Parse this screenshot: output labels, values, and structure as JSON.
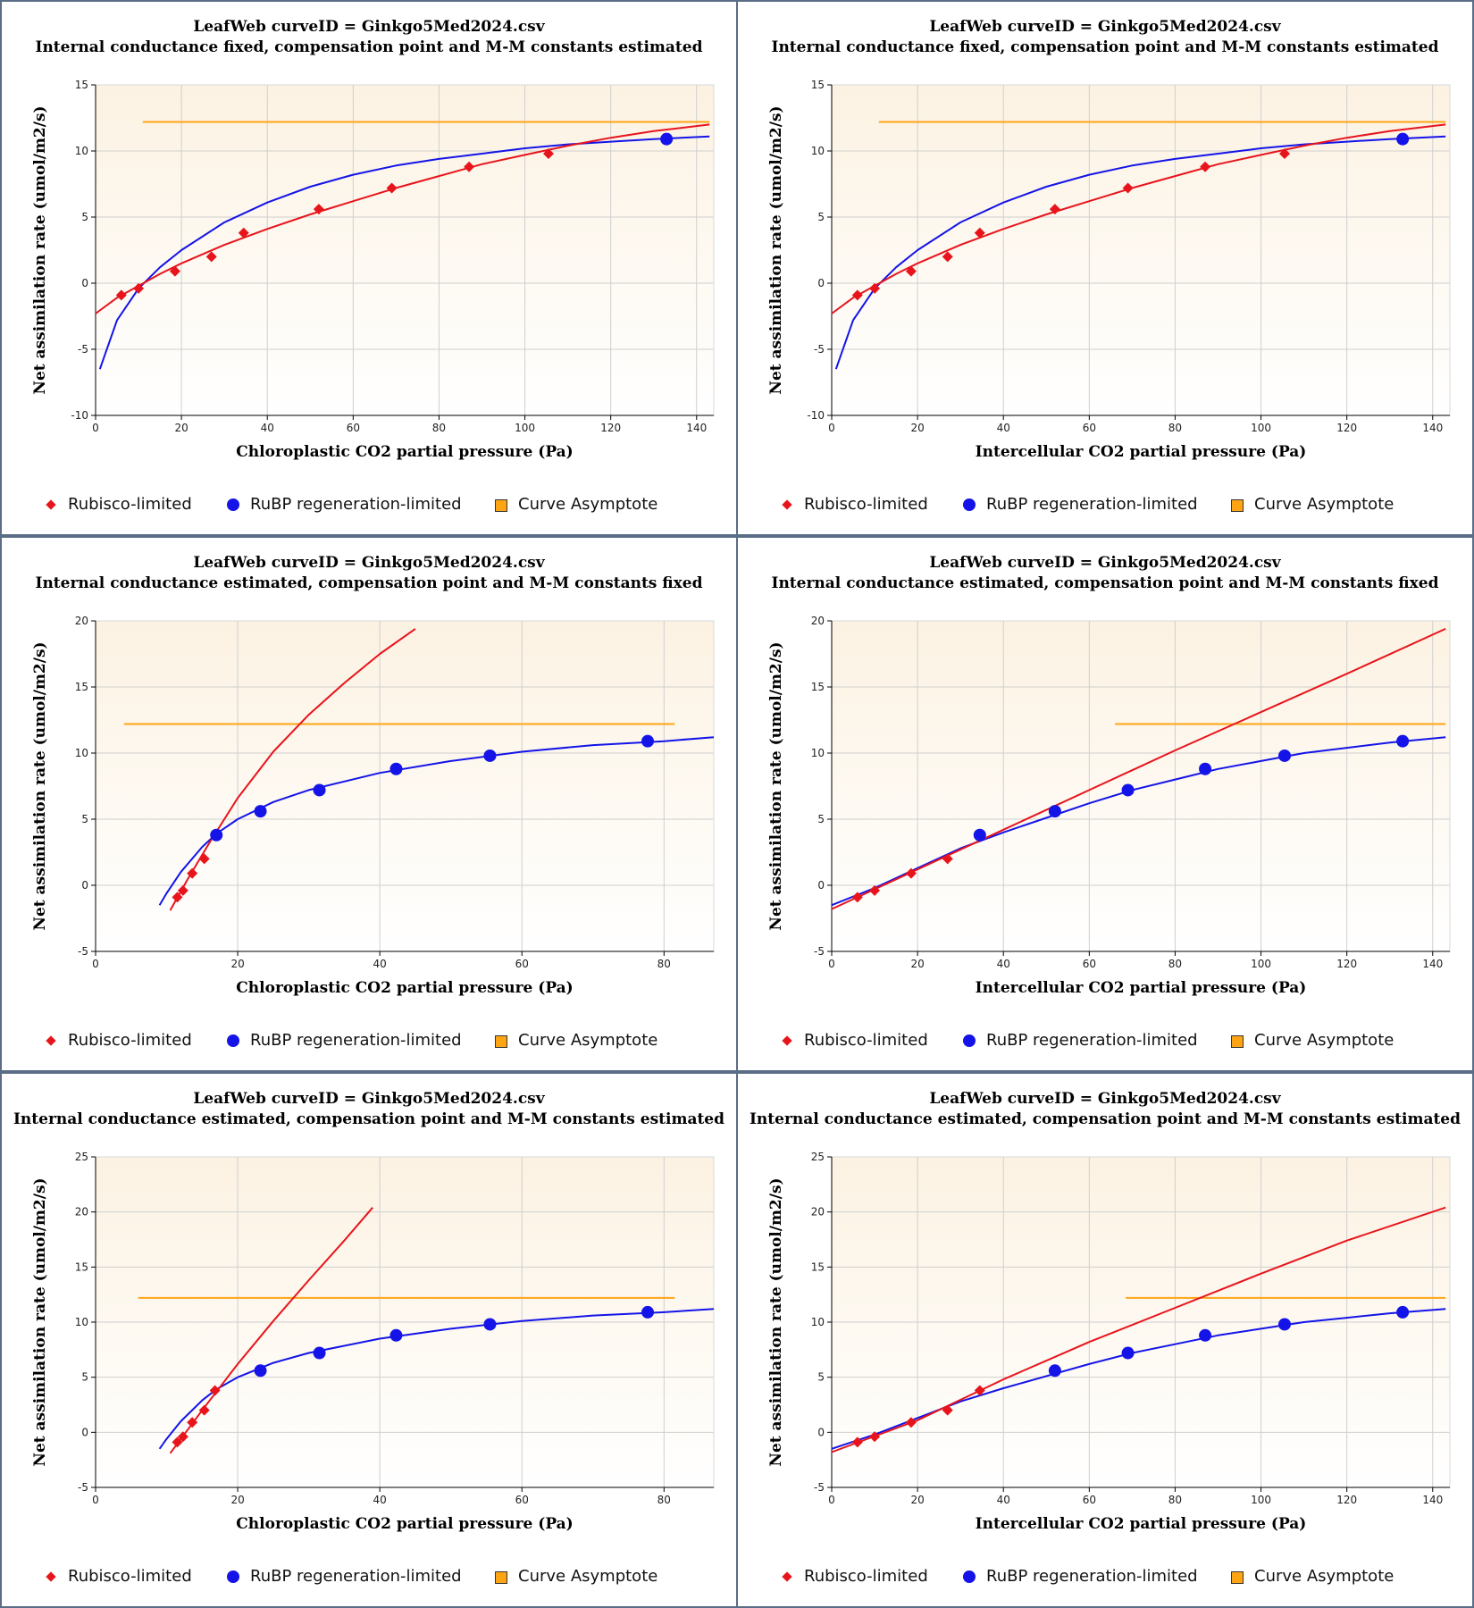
{
  "legend": [
    {
      "label": "Rubisco-limited",
      "color": "#e8141c",
      "symbol": "diamond-icon"
    },
    {
      "label": "RuBP regeneration-limited",
      "color": "#1414e8",
      "symbol": "circle-icon"
    },
    {
      "label": "Curve Asymptote",
      "color": "#ffa514",
      "symbol": "square-icon"
    }
  ],
  "chart_data": [
    {
      "type": "scatter",
      "title": "LeafWeb curveID = Ginkgo5Med2024.csv",
      "subtitle": "Internal conductance fixed, compensation point and M-M constants estimated",
      "xlabel": "Chloroplastic CO2 partial pressure (Pa)",
      "ylabel": "Net assimilation rate (umol/m2/s)",
      "xlim": [
        0,
        144
      ],
      "ylim": [
        -10,
        15
      ],
      "xticks": [
        0,
        20,
        40,
        60,
        80,
        100,
        120,
        140
      ],
      "yticks": [
        -10,
        -5,
        0,
        5,
        10,
        15
      ],
      "grid": true,
      "legend_position": "bottom",
      "asymptote": {
        "y": 12.2,
        "x0": 11,
        "x1": 143
      },
      "rubisco_curve": {
        "x": [
          0,
          5,
          10,
          15,
          20,
          30,
          40,
          50,
          60,
          70,
          80,
          90,
          100,
          110,
          120,
          130,
          143
        ],
        "y": [
          -2.3,
          -1.1,
          -0.2,
          0.7,
          1.5,
          2.9,
          4.1,
          5.2,
          6.2,
          7.2,
          8.1,
          9.0,
          9.7,
          10.4,
          11.0,
          11.5,
          12.0
        ]
      },
      "rubp_curve": {
        "x": [
          1,
          5,
          10,
          15,
          20,
          30,
          40,
          50,
          60,
          70,
          80,
          90,
          100,
          110,
          120,
          130,
          143
        ],
        "y": [
          -6.5,
          -2.8,
          -0.4,
          1.2,
          2.5,
          4.6,
          6.1,
          7.3,
          8.2,
          8.9,
          9.4,
          9.8,
          10.2,
          10.5,
          10.7,
          10.9,
          11.1
        ]
      },
      "rubisco_points": {
        "x": [
          6,
          10,
          18.5,
          27,
          34.5,
          52,
          69,
          87,
          105.5
        ],
        "y": [
          -0.9,
          -0.4,
          0.9,
          2.0,
          3.8,
          5.6,
          7.2,
          8.8,
          9.8
        ]
      },
      "rubp_points": {
        "x": [
          133
        ],
        "y": [
          10.9
        ]
      }
    },
    {
      "type": "scatter",
      "title": "LeafWeb curveID = Ginkgo5Med2024.csv",
      "subtitle": "Internal conductance fixed, compensation point and M-M constants estimated",
      "xlabel": "Intercellular CO2 partial pressure (Pa)",
      "ylabel": "Net assimilation rate (umol/m2/s)",
      "xlim": [
        0,
        144
      ],
      "ylim": [
        -10,
        15
      ],
      "xticks": [
        0,
        20,
        40,
        60,
        80,
        100,
        120,
        140
      ],
      "yticks": [
        -10,
        -5,
        0,
        5,
        10,
        15
      ],
      "grid": true,
      "legend_position": "bottom",
      "asymptote": {
        "y": 12.2,
        "x0": 11,
        "x1": 143
      },
      "rubisco_curve": {
        "x": [
          0,
          5,
          10,
          15,
          20,
          30,
          40,
          50,
          60,
          70,
          80,
          90,
          100,
          110,
          120,
          130,
          143
        ],
        "y": [
          -2.3,
          -1.1,
          -0.2,
          0.7,
          1.5,
          2.9,
          4.1,
          5.2,
          6.2,
          7.2,
          8.1,
          9.0,
          9.7,
          10.4,
          11.0,
          11.5,
          12.0
        ]
      },
      "rubp_curve": {
        "x": [
          1,
          5,
          10,
          15,
          20,
          30,
          40,
          50,
          60,
          70,
          80,
          90,
          100,
          110,
          120,
          130,
          143
        ],
        "y": [
          -6.5,
          -2.8,
          -0.4,
          1.2,
          2.5,
          4.6,
          6.1,
          7.3,
          8.2,
          8.9,
          9.4,
          9.8,
          10.2,
          10.5,
          10.7,
          10.9,
          11.1
        ]
      },
      "rubisco_points": {
        "x": [
          6,
          10,
          18.5,
          27,
          34.5,
          52,
          69,
          87,
          105.5
        ],
        "y": [
          -0.9,
          -0.4,
          0.9,
          2.0,
          3.8,
          5.6,
          7.2,
          8.8,
          9.8
        ]
      },
      "rubp_points": {
        "x": [
          133
        ],
        "y": [
          10.9
        ]
      }
    },
    {
      "type": "scatter",
      "title": "LeafWeb curveID = Ginkgo5Med2024.csv",
      "subtitle": "Internal conductance estimated, compensation point and M-M constants fixed",
      "xlabel": "Chloroplastic CO2 partial pressure (Pa)",
      "ylabel": "Net assimilation rate (umol/m2/s)",
      "xlim": [
        0,
        87
      ],
      "ylim": [
        -5,
        20
      ],
      "xticks": [
        0,
        20,
        40,
        60,
        80
      ],
      "yticks": [
        -5,
        0,
        5,
        10,
        15,
        20
      ],
      "grid": true,
      "legend_position": "bottom",
      "asymptote": {
        "y": 12.2,
        "x0": 4,
        "x1": 81.5
      },
      "rubisco_curve": {
        "x": [
          10.5,
          13,
          16,
          20,
          25,
          30,
          35,
          40,
          45
        ],
        "y": [
          -1.9,
          0.5,
          3.2,
          6.6,
          10.1,
          12.9,
          15.3,
          17.5,
          19.4
        ]
      },
      "rubp_curve": {
        "x": [
          9,
          10,
          12,
          15,
          17,
          20,
          25,
          30,
          40,
          50,
          60,
          70,
          80,
          87
        ],
        "y": [
          -1.5,
          -0.6,
          1.0,
          2.9,
          3.9,
          5.0,
          6.3,
          7.2,
          8.5,
          9.4,
          10.1,
          10.6,
          10.9,
          11.2
        ]
      },
      "rubisco_points": {
        "x": [
          11.5,
          12.3,
          13.6,
          15.3
        ],
        "y": [
          -0.9,
          -0.4,
          0.9,
          2.0
        ]
      },
      "rubp_points": {
        "x": [
          17,
          23.2,
          31.5,
          42.3,
          55.5,
          77.7
        ],
        "y": [
          3.8,
          5.6,
          7.2,
          8.8,
          9.8,
          10.9
        ]
      }
    },
    {
      "type": "scatter",
      "title": "LeafWeb curveID = Ginkgo5Med2024.csv",
      "subtitle": "Internal conductance estimated, compensation point and M-M constants fixed",
      "xlabel": "Intercellular CO2 partial pressure (Pa)",
      "ylabel": "Net assimilation rate (umol/m2/s)",
      "xlim": [
        0,
        144
      ],
      "ylim": [
        -5,
        20
      ],
      "xticks": [
        0,
        20,
        40,
        60,
        80,
        100,
        120,
        140
      ],
      "yticks": [
        -5,
        0,
        5,
        10,
        15,
        20
      ],
      "grid": true,
      "legend_position": "bottom",
      "asymptote": {
        "y": 12.2,
        "x0": 66,
        "x1": 143
      },
      "rubisco_curve": {
        "x": [
          0,
          20,
          40,
          60,
          80,
          100,
          120,
          143
        ],
        "y": [
          -1.8,
          1.2,
          4.2,
          7.2,
          10.2,
          13.1,
          16.0,
          19.4
        ]
      },
      "rubp_curve": {
        "x": [
          0,
          10,
          20,
          30,
          40,
          50,
          60,
          70,
          80,
          90,
          100,
          110,
          120,
          130,
          143
        ],
        "y": [
          -1.5,
          -0.2,
          1.3,
          2.8,
          4.0,
          5.1,
          6.2,
          7.2,
          8.0,
          8.8,
          9.4,
          10.0,
          10.4,
          10.8,
          11.2
        ]
      },
      "rubisco_points": {
        "x": [
          6,
          10,
          18.5,
          27
        ],
        "y": [
          -0.9,
          -0.4,
          0.9,
          2.0
        ]
      },
      "rubp_points": {
        "x": [
          34.5,
          52,
          69,
          87,
          105.5,
          133
        ],
        "y": [
          3.8,
          5.6,
          7.2,
          8.8,
          9.8,
          10.9
        ]
      }
    },
    {
      "type": "scatter",
      "title": "LeafWeb curveID = Ginkgo5Med2024.csv",
      "subtitle": "Internal conductance estimated, compensation point and M-M constants estimated",
      "xlabel": "Chloroplastic CO2 partial pressure (Pa)",
      "ylabel": "Net assimilation rate (umol/m2/s)",
      "xlim": [
        0,
        87
      ],
      "ylim": [
        -5,
        25
      ],
      "xticks": [
        0,
        20,
        40,
        60,
        80
      ],
      "yticks": [
        -5,
        0,
        5,
        10,
        15,
        20,
        25
      ],
      "grid": true,
      "legend_position": "bottom",
      "asymptote": {
        "y": 12.2,
        "x0": 6,
        "x1": 81.5
      },
      "rubisco_curve": {
        "x": [
          10.5,
          15,
          20,
          25,
          30,
          35,
          39
        ],
        "y": [
          -1.9,
          2.0,
          6.2,
          10.1,
          13.8,
          17.4,
          20.4
        ]
      },
      "rubp_curve": {
        "x": [
          9,
          10,
          12,
          15,
          17,
          20,
          25,
          30,
          40,
          50,
          60,
          70,
          80,
          87
        ],
        "y": [
          -1.5,
          -0.6,
          1.0,
          2.9,
          3.9,
          5.0,
          6.3,
          7.2,
          8.5,
          9.4,
          10.1,
          10.6,
          10.9,
          11.2
        ]
      },
      "rubisco_points": {
        "x": [
          11.5,
          12.3,
          13.6,
          15.3,
          16.8
        ],
        "y": [
          -0.9,
          -0.4,
          0.9,
          2.0,
          3.8
        ]
      },
      "rubp_points": {
        "x": [
          23.2,
          31.5,
          42.3,
          55.5,
          77.7
        ],
        "y": [
          5.6,
          7.2,
          8.8,
          9.8,
          10.9
        ]
      }
    },
    {
      "type": "scatter",
      "title": "LeafWeb curveID = Ginkgo5Med2024.csv",
      "subtitle": "Internal conductance estimated, compensation point and M-M constants estimated",
      "xlabel": "Intercellular CO2 partial pressure (Pa)",
      "ylabel": "Net assimilation rate (umol/m2/s)",
      "xlim": [
        0,
        144
      ],
      "ylim": [
        -5,
        25
      ],
      "xticks": [
        0,
        20,
        40,
        60,
        80,
        100,
        120,
        140
      ],
      "yticks": [
        -5,
        0,
        5,
        10,
        15,
        20,
        25
      ],
      "grid": true,
      "legend_position": "bottom",
      "asymptote": {
        "y": 12.2,
        "x0": 68.5,
        "x1": 143
      },
      "rubisco_curve": {
        "x": [
          0,
          20,
          40,
          60,
          80,
          100,
          120,
          143
        ],
        "y": [
          -1.8,
          1.1,
          4.8,
          8.2,
          11.3,
          14.4,
          17.4,
          20.4
        ]
      },
      "rubp_curve": {
        "x": [
          0,
          10,
          20,
          30,
          40,
          50,
          60,
          70,
          80,
          90,
          100,
          110,
          120,
          130,
          143
        ],
        "y": [
          -1.5,
          -0.2,
          1.3,
          2.8,
          4.0,
          5.1,
          6.2,
          7.2,
          8.0,
          8.8,
          9.4,
          10.0,
          10.4,
          10.8,
          11.2
        ]
      },
      "rubisco_points": {
        "x": [
          6,
          10,
          18.5,
          27,
          34.5
        ],
        "y": [
          -0.9,
          -0.4,
          0.9,
          2.0,
          3.8
        ]
      },
      "rubp_points": {
        "x": [
          52,
          69,
          87,
          105.5,
          133
        ],
        "y": [
          5.6,
          7.2,
          8.8,
          9.8,
          10.9
        ]
      }
    }
  ]
}
